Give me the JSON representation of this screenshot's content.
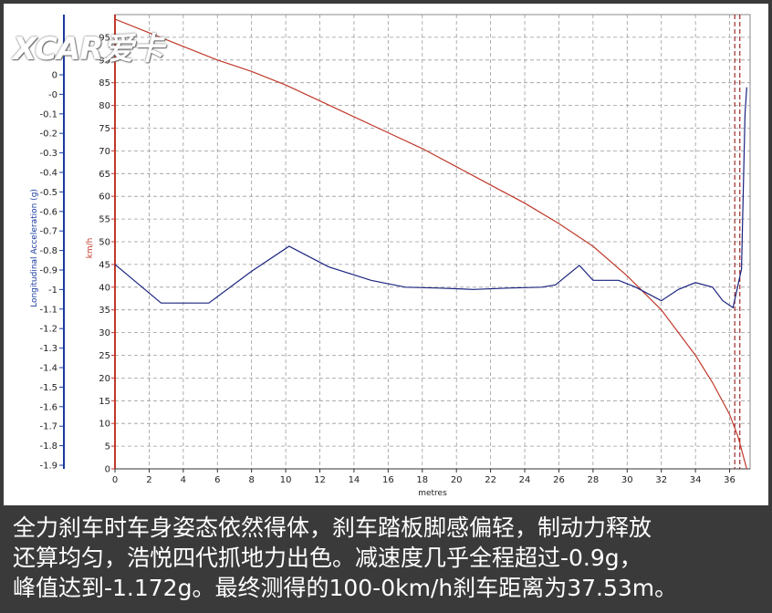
{
  "logo_text": "XCAR爱卡",
  "caption": [
    "全力刹车时车身姿态依然得体，刹车踏板脚感偏轻，制动力释放",
    "还算均匀，浩悦四代抓地力出色。减速度几乎全程超过-0.9g，",
    "峰值达到-1.172g。最终测得的100-0km/h刹车距离为37.53m。"
  ],
  "chart_data": {
    "type": "line",
    "title": "",
    "xlabel": "metres",
    "ylabel_left": "Longitudinal Acceleration (g)",
    "ylabel_right": "km/h",
    "x_ticks": [
      0,
      2,
      4,
      6,
      8,
      10,
      12,
      14,
      16,
      18,
      20,
      22,
      24,
      26,
      28,
      30,
      32,
      34,
      36
    ],
    "xlim": [
      0,
      37.2
    ],
    "left_ticks": [
      "0",
      "-0",
      "-0.1",
      "-0.2",
      "-0.3",
      "-0.4",
      "-0.5",
      "-0.6",
      "-0.7",
      "-0.8",
      "-0.9",
      "-1",
      "-1.1",
      "-1.2",
      "-1.3",
      "-1.4",
      "-1.5",
      "-1.6",
      "-1.7",
      "-1.8",
      "-1.9"
    ],
    "right_ticks": [
      0,
      5,
      10,
      15,
      20,
      25,
      30,
      35,
      40,
      45,
      50,
      55,
      60,
      65,
      70,
      75,
      80,
      85,
      90,
      95
    ],
    "speed_ylim": [
      0,
      100
    ],
    "grid": true,
    "marker_lines_x": [
      36.3,
      36.6
    ],
    "series": [
      {
        "unit": "km/h",
        "color": "#c0392b",
        "x": [
          0,
          2,
          4,
          6,
          8,
          10,
          12,
          14,
          16,
          18,
          20,
          22,
          24,
          26,
          28,
          30,
          32,
          34,
          35,
          36,
          36.5,
          37.0
        ],
        "y": [
          99,
          96,
          93,
          90,
          87.5,
          84.5,
          81,
          77.5,
          74,
          70.5,
          66.5,
          62.5,
          58.5,
          54,
          49,
          42.5,
          35,
          25,
          19,
          12,
          7,
          0
        ]
      },
      {
        "unit": "km/h",
        "color": "#1a237e",
        "x": [
          0,
          2.7,
          5.5,
          8,
          10.2,
          12.5,
          15,
          17,
          19,
          21,
          23,
          25,
          25.8,
          27.2,
          28,
          29.5,
          30.5,
          32,
          33,
          34,
          35,
          35.6,
          36.2,
          36.7,
          36.9,
          37.0
        ],
        "y": [
          45,
          36.5,
          36.5,
          43.5,
          49,
          44.5,
          41.5,
          40,
          39.8,
          39.5,
          39.8,
          40,
          40.5,
          44.8,
          41.5,
          41.5,
          40,
          37,
          39.5,
          41,
          40,
          37,
          35.5,
          44,
          78,
          84
        ]
      }
    ]
  }
}
